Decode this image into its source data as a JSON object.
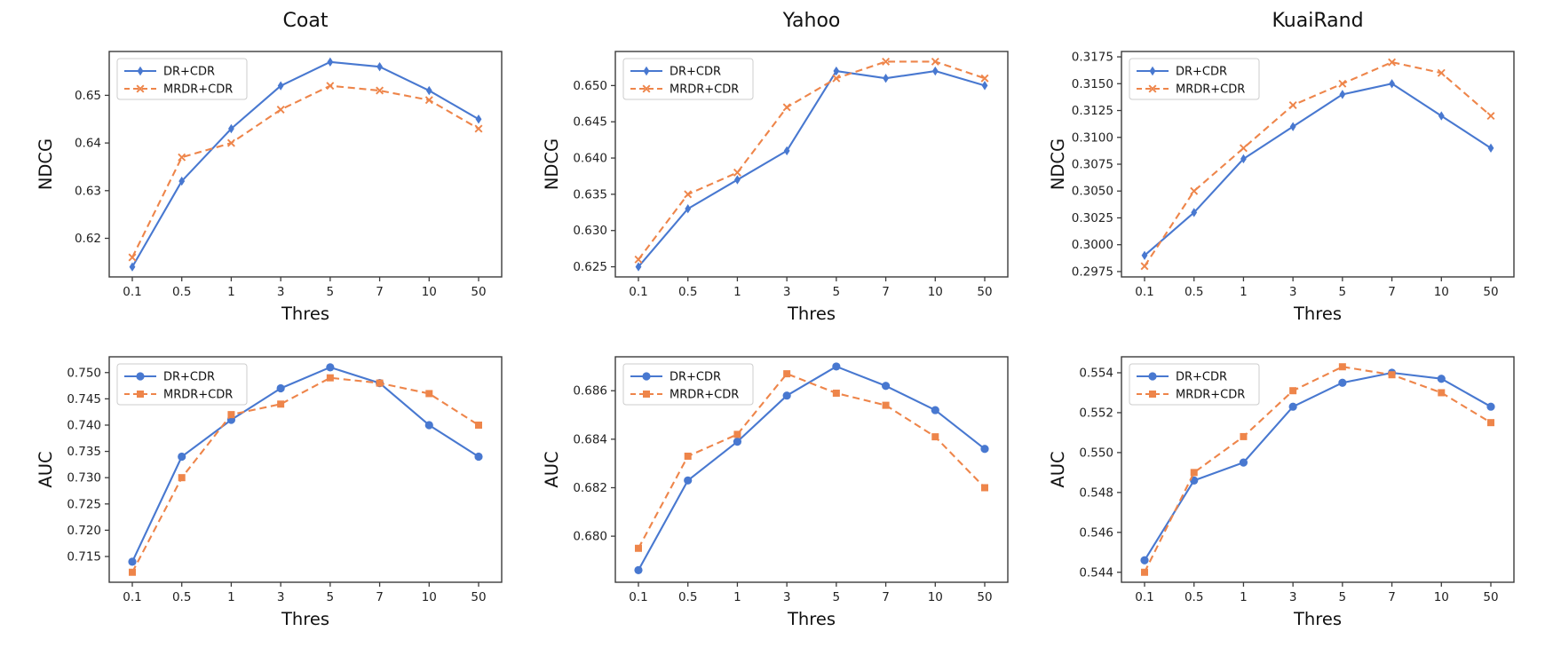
{
  "figure": {
    "background": "#ffffff",
    "column_titles": [
      "Coat",
      "Yahoo",
      "KuaiRand"
    ]
  },
  "palette": {
    "dr_cdr_blue": "#4878d0",
    "mrdr_cdr_orange": "#ee854a",
    "axis_frame": "#3b3b3b",
    "tick_text": "#222222",
    "legend_border": "#cccccc"
  },
  "chart_data": [
    {
      "id": "coat-ndcg",
      "type": "line",
      "title": "Coat",
      "xlabel": "Thres",
      "ylabel": "NDCG",
      "categories": [
        "0.1",
        "0.5",
        "1",
        "3",
        "5",
        "7",
        "10",
        "50"
      ],
      "yticks": [
        "0.62",
        "0.63",
        "0.64",
        "0.65"
      ],
      "ylim": [
        0.6119,
        0.6592
      ],
      "grid": false,
      "legend_position": "upper left",
      "legend": [
        "DR+CDR",
        "MRDR+CDR"
      ],
      "series": [
        {
          "name": "DR+CDR",
          "color": "#4878d0",
          "line_style": "solid",
          "marker": "diamond",
          "values": [
            0.614,
            0.632,
            0.643,
            0.652,
            0.657,
            0.656,
            0.651,
            0.645
          ]
        },
        {
          "name": "MRDR+CDR",
          "color": "#ee854a",
          "line_style": "dashed",
          "marker": "x",
          "values": [
            0.616,
            0.637,
            0.64,
            0.647,
            0.652,
            0.651,
            0.649,
            0.643
          ]
        }
      ]
    },
    {
      "id": "yahoo-ndcg",
      "type": "line",
      "title": "Yahoo",
      "xlabel": "Thres",
      "ylabel": "NDCG",
      "categories": [
        "0.1",
        "0.5",
        "1",
        "3",
        "5",
        "7",
        "10",
        "50"
      ],
      "yticks": [
        "0.625",
        "0.630",
        "0.635",
        "0.640",
        "0.645",
        "0.650"
      ],
      "ylim": [
        0.6236,
        0.6547
      ],
      "grid": false,
      "legend_position": "upper left",
      "legend": [
        "DR+CDR",
        "MRDR+CDR"
      ],
      "series": [
        {
          "name": "DR+CDR",
          "color": "#4878d0",
          "line_style": "solid",
          "marker": "diamond",
          "values": [
            0.625,
            0.633,
            0.637,
            0.641,
            0.652,
            0.651,
            0.652,
            0.65
          ]
        },
        {
          "name": "MRDR+CDR",
          "color": "#ee854a",
          "line_style": "dashed",
          "marker": "x",
          "values": [
            0.626,
            0.635,
            0.638,
            0.647,
            0.651,
            0.6533,
            0.6533,
            0.651
          ]
        }
      ]
    },
    {
      "id": "kuairand-ndcg",
      "type": "line",
      "title": "KuaiRand",
      "xlabel": "Thres",
      "ylabel": "NDCG",
      "categories": [
        "0.1",
        "0.5",
        "1",
        "3",
        "5",
        "7",
        "10",
        "50"
      ],
      "yticks": [
        "0.2975",
        "0.3000",
        "0.3025",
        "0.3050",
        "0.3075",
        "0.3100",
        "0.3125",
        "0.3150",
        "0.3175"
      ],
      "ylim": [
        0.297,
        0.318
      ],
      "grid": false,
      "legend_position": "upper left",
      "legend": [
        "DR+CDR",
        "MRDR+CDR"
      ],
      "series": [
        {
          "name": "DR+CDR",
          "color": "#4878d0",
          "line_style": "solid",
          "marker": "diamond",
          "values": [
            0.299,
            0.303,
            0.308,
            0.311,
            0.314,
            0.315,
            0.312,
            0.309
          ]
        },
        {
          "name": "MRDR+CDR",
          "color": "#ee854a",
          "line_style": "dashed",
          "marker": "x",
          "values": [
            0.298,
            0.305,
            0.309,
            0.313,
            0.315,
            0.317,
            0.316,
            0.312
          ]
        }
      ]
    },
    {
      "id": "coat-auc",
      "type": "line",
      "title": "",
      "xlabel": "Thres",
      "ylabel": "AUC",
      "categories": [
        "0.1",
        "0.5",
        "1",
        "3",
        "5",
        "7",
        "10",
        "50"
      ],
      "yticks": [
        "0.715",
        "0.720",
        "0.725",
        "0.730",
        "0.735",
        "0.740",
        "0.745",
        "0.750"
      ],
      "ylim": [
        0.7101,
        0.753
      ],
      "grid": false,
      "legend_position": "upper left",
      "legend": [
        "DR+CDR",
        "MRDR+CDR"
      ],
      "series": [
        {
          "name": "DR+CDR",
          "color": "#4878d0",
          "line_style": "solid",
          "marker": "circle",
          "values": [
            0.714,
            0.734,
            0.741,
            0.747,
            0.751,
            0.748,
            0.74,
            0.734
          ]
        },
        {
          "name": "MRDR+CDR",
          "color": "#ee854a",
          "line_style": "dashed",
          "marker": "square",
          "values": [
            0.712,
            0.73,
            0.742,
            0.744,
            0.749,
            0.748,
            0.746,
            0.74
          ]
        }
      ]
    },
    {
      "id": "yahoo-auc",
      "type": "line",
      "title": "",
      "xlabel": "Thres",
      "ylabel": "AUC",
      "categories": [
        "0.1",
        "0.5",
        "1",
        "3",
        "5",
        "7",
        "10",
        "50"
      ],
      "yticks": [
        "0.680",
        "0.682",
        "0.684",
        "0.686"
      ],
      "ylim": [
        0.6781,
        0.6874
      ],
      "grid": false,
      "legend_position": "upper left",
      "legend": [
        "DR+CDR",
        "MRDR+CDR"
      ],
      "series": [
        {
          "name": "DR+CDR",
          "color": "#4878d0",
          "line_style": "solid",
          "marker": "circle",
          "values": [
            0.6786,
            0.6823,
            0.6839,
            0.6858,
            0.687,
            0.6862,
            0.6852,
            0.6836
          ]
        },
        {
          "name": "MRDR+CDR",
          "color": "#ee854a",
          "line_style": "dashed",
          "marker": "square",
          "values": [
            0.6795,
            0.6833,
            0.6842,
            0.6867,
            0.6859,
            0.6854,
            0.6841,
            0.682
          ]
        }
      ]
    },
    {
      "id": "kuairand-auc",
      "type": "line",
      "title": "",
      "xlabel": "Thres",
      "ylabel": "AUC",
      "categories": [
        "0.1",
        "0.5",
        "1",
        "3",
        "5",
        "7",
        "10",
        "50"
      ],
      "yticks": [
        "0.544",
        "0.546",
        "0.548",
        "0.550",
        "0.552",
        "0.554"
      ],
      "ylim": [
        0.5435,
        0.5548
      ],
      "grid": false,
      "legend_position": "upper left",
      "legend": [
        "DR+CDR",
        "MRDR+CDR"
      ],
      "series": [
        {
          "name": "DR+CDR",
          "color": "#4878d0",
          "line_style": "solid",
          "marker": "circle",
          "values": [
            0.5446,
            0.5486,
            0.5495,
            0.5523,
            0.5535,
            0.554,
            0.5537,
            0.5523
          ]
        },
        {
          "name": "MRDR+CDR",
          "color": "#ee854a",
          "line_style": "dashed",
          "marker": "square",
          "values": [
            0.544,
            0.549,
            0.5508,
            0.5531,
            0.5543,
            0.5539,
            0.553,
            0.5515
          ]
        }
      ]
    }
  ]
}
